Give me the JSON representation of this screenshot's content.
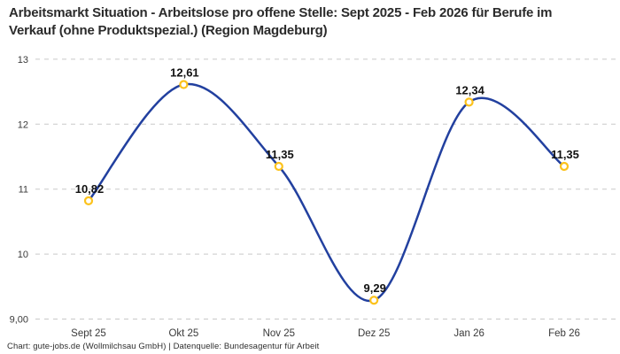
{
  "title": "Arbeitsmarkt Situation - Arbeitslose pro offene Stelle: Sept 2025 - Feb 2026 für Berufe im Verkauf (ohne Produktspezial.) (Region Magdeburg)",
  "footer": "Chart: gute-jobs.de (Wollmilchsau GmbH) | Datenquelle: Bundesagentur für Arbeit",
  "chart_data": {
    "type": "line",
    "title": "Arbeitsmarkt Situation - Arbeitslose pro offene Stelle: Sept 2025 - Feb 2026 für Berufe im Verkauf (ohne Produktspezial.) (Region Magdeburg)",
    "categories": [
      "Sept 25",
      "Okt 25",
      "Nov 25",
      "Dez 25",
      "Jan 26",
      "Feb 26"
    ],
    "values": [
      10.82,
      12.61,
      11.35,
      9.29,
      12.34,
      11.35
    ],
    "value_labels": [
      "10,82",
      "12,61",
      "11,35",
      "9,29",
      "12,34",
      "11,35"
    ],
    "xlabel": "",
    "ylabel": "",
    "ylim": [
      9,
      13
    ],
    "y_ticks": [
      9,
      10,
      11,
      12,
      13
    ],
    "y_tick_labels": [
      "9,00",
      "10",
      "11",
      "12",
      "13"
    ],
    "grid": "horizontal-dashed",
    "legend": "none",
    "curve": "smooth-spline",
    "colors": {
      "line": "#22409f",
      "marker_ring": "#fcc21c",
      "marker_fill": "#ffffff",
      "gridline": "#c9c9c9",
      "tick_text": "#3a3a3a",
      "label_text": "#111111",
      "title_text": "#2b2b2b",
      "background": "#ffffff"
    }
  }
}
